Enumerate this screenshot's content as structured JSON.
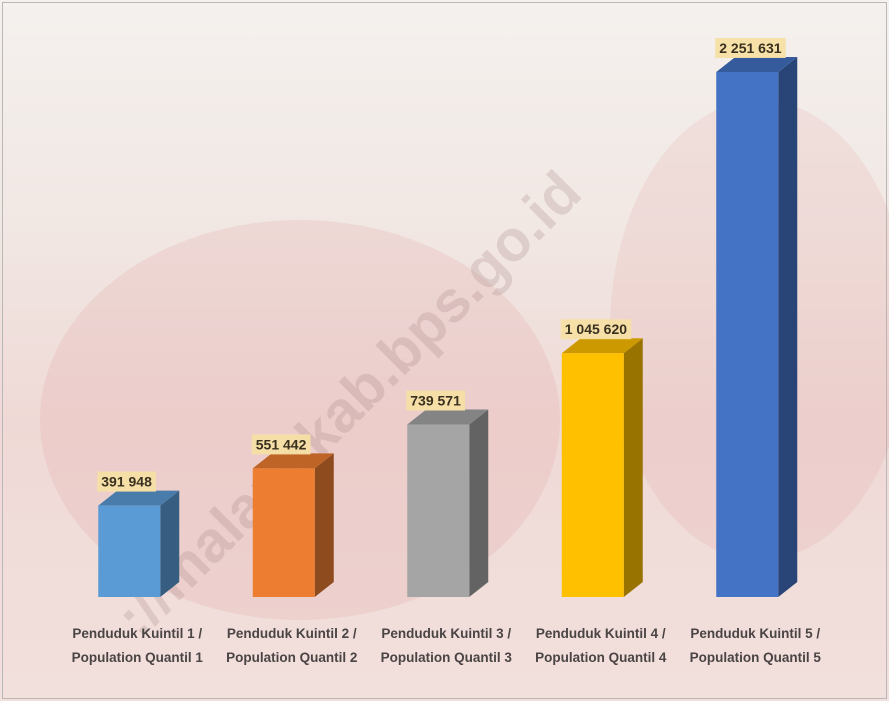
{
  "watermark": "://malangkab.bps.go.id",
  "chart_data": {
    "type": "bar3d",
    "categories": [
      "Penduduk Kuintil 1 / Population Quantil 1",
      "Penduduk Kuintil 2 / Population Quantil 2",
      "Penduduk Kuintil 3 / Population Quantil 3",
      "Penduduk Kuintil 4 / Population Quantil 4",
      "Penduduk Kuintil 5 / Population Quantil 5"
    ],
    "values": [
      391948,
      551442,
      739571,
      1045620,
      2251631
    ],
    "value_labels": [
      "391 948",
      "551 442",
      "739 571",
      "1 045 620",
      "2 251 631"
    ],
    "colors": [
      "#5b9bd5",
      "#ed7d31",
      "#a5a5a5",
      "#ffc000",
      "#4472c4"
    ]
  }
}
